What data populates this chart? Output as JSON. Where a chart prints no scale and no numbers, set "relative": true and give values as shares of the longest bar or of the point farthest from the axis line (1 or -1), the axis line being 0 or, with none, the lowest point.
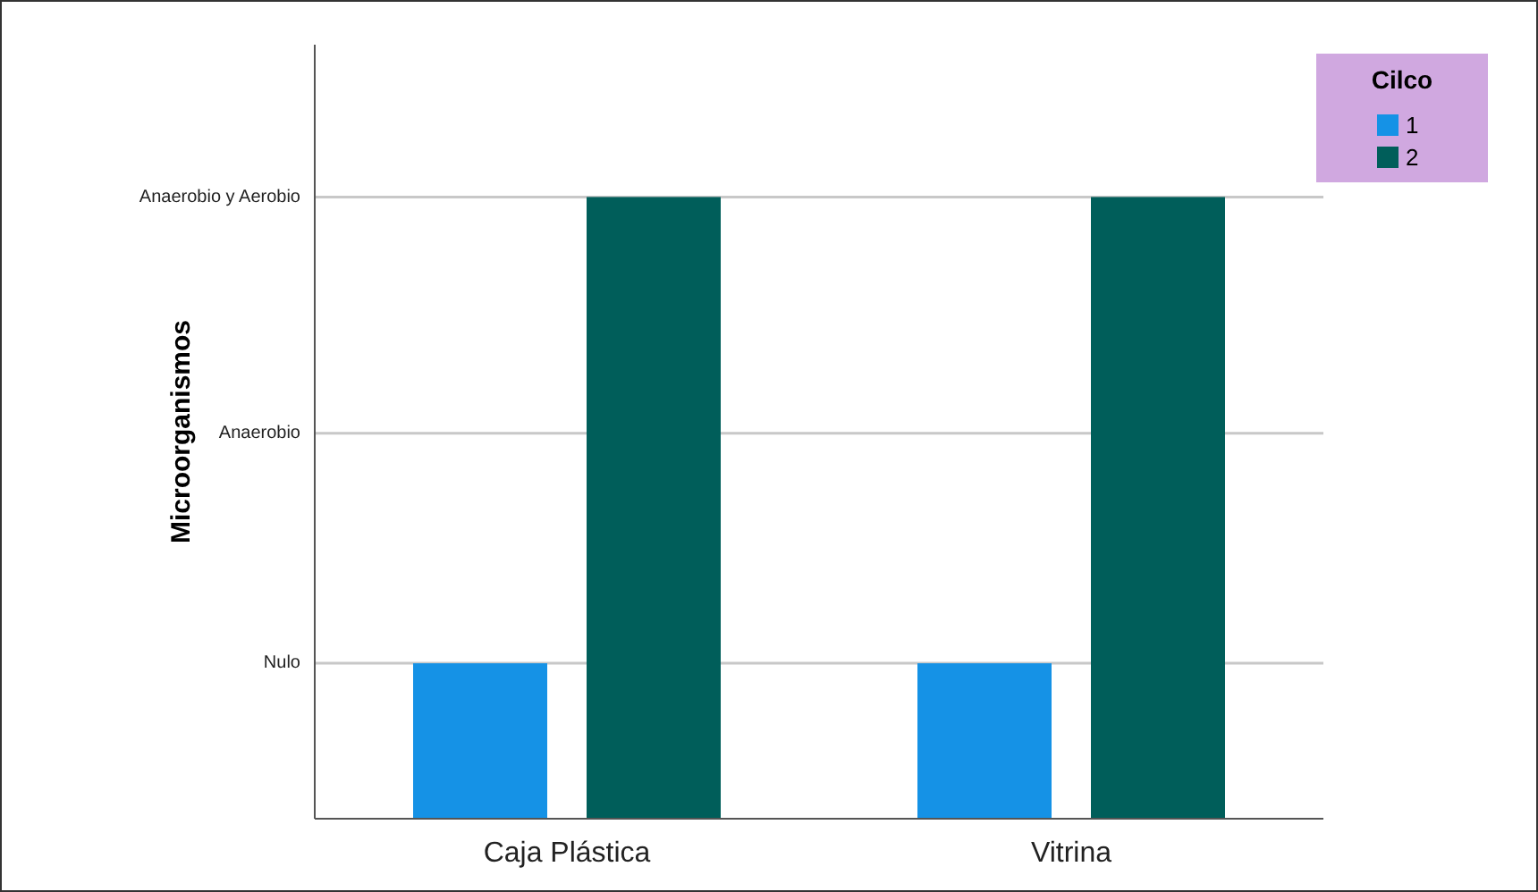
{
  "chart_data": {
    "type": "bar",
    "ylabel": "Microorganismos",
    "legend_title": "Cilco",
    "categories": [
      "Caja Plástica",
      "Vitrina"
    ],
    "relative": true,
    "series": [
      {
        "name": "1",
        "color": "#1592e6",
        "values": [
          0.25,
          0.25
        ]
      },
      {
        "name": "2",
        "color": "#005e5a",
        "values": [
          1,
          1
        ]
      }
    ],
    "ref_lines": [
      {
        "axis": "y",
        "value": 0.25,
        "label": "Nulo",
        "color": "#c8c8c8"
      },
      {
        "axis": "y",
        "value": 0.62,
        "label": "Anaerobio",
        "color": "#c8c8c8"
      },
      {
        "axis": "y",
        "value": 1,
        "label": "Anaerobio y Aerobio",
        "color": "#c8c8c8"
      }
    ],
    "legend": "top right"
  }
}
